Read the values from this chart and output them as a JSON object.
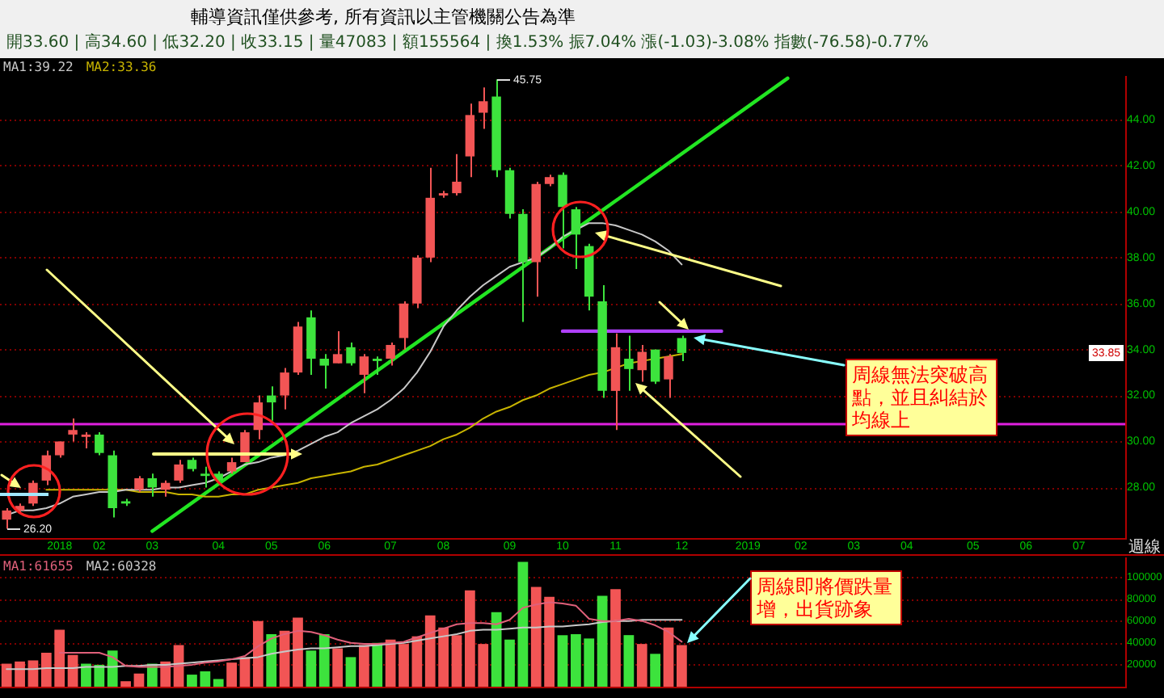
{
  "chart_data": [
    {
      "type": "candlestick",
      "xlabel": "週線",
      "legend": "top left",
      "grid": "y",
      "annotations": [
        "輔導資訊僅供參考, 所有資訊以主管機關公告為準",
        "開33.60 | 高34.60 | 低32.20 | 收33.15 | 量47083 | 額155564 | 換1.53% 振7.04% 漲(-1.03)-3.08% 指數(-76.58)-0.77%",
        "45.75",
        "26.20",
        {
          "text": "33.85",
          "y": 33.85
        },
        "周線無法突破高點，並且糾結於均線上"
      ],
      "categories": [
        null,
        null,
        null,
        null,
        "2018",
        null,
        null,
        "02",
        null,
        null,
        null,
        "03",
        null,
        null,
        null,
        null,
        "04",
        null,
        null,
        null,
        "05",
        null,
        null,
        null,
        "06",
        null,
        null,
        null,
        null,
        "07",
        null,
        null,
        null,
        "08",
        null,
        null,
        null,
        null,
        "09",
        null,
        null,
        null,
        "10",
        null,
        null,
        null,
        "11",
        null,
        null,
        null,
        null,
        "12",
        null,
        null,
        null,
        null,
        "2019",
        null,
        null,
        null,
        "02",
        null,
        null,
        null,
        "03",
        null,
        null,
        null,
        "04",
        null,
        null,
        null,
        null,
        "05",
        null,
        null,
        null,
        "06",
        null,
        null,
        null,
        "07",
        null,
        null,
        null
      ],
      "ohlc": [
        [
          26.6,
          27.1,
          26.2,
          27.0
        ],
        [
          27.0,
          27.3,
          26.9,
          27.2
        ],
        [
          27.3,
          28.3,
          27.2,
          28.2
        ],
        [
          28.3,
          29.6,
          28.1,
          29.4
        ],
        [
          29.4,
          30.0,
          29.3,
          30.0
        ],
        [
          30.3,
          31.0,
          30.0,
          30.5
        ],
        [
          30.2,
          30.4,
          29.7,
          30.3
        ],
        [
          30.3,
          30.4,
          29.4,
          29.5
        ],
        [
          29.4,
          29.6,
          26.7,
          27.1
        ],
        [
          27.4,
          27.5,
          27.2,
          27.3
        ],
        [
          27.9,
          28.5,
          27.8,
          28.4
        ],
        [
          28.4,
          28.6,
          27.6,
          28.0
        ],
        [
          27.9,
          28.3,
          27.6,
          28.2
        ],
        [
          28.3,
          29.2,
          28.2,
          29.0
        ],
        [
          29.2,
          29.3,
          28.7,
          28.8
        ],
        [
          28.6,
          28.9,
          28.0,
          28.5
        ],
        [
          28.6,
          28.7,
          28.1,
          28.3
        ],
        [
          28.7,
          29.3,
          28.6,
          29.1
        ],
        [
          29.1,
          30.5,
          29.1,
          30.4
        ],
        [
          30.5,
          32.0,
          30.1,
          31.7
        ],
        [
          32.0,
          32.4,
          30.9,
          31.7
        ],
        [
          32.0,
          33.2,
          31.4,
          33.0
        ],
        [
          33.0,
          35.2,
          32.9,
          35.0
        ],
        [
          35.4,
          35.7,
          32.9,
          33.6
        ],
        [
          33.6,
          33.8,
          32.3,
          33.3
        ],
        [
          33.4,
          34.8,
          33.4,
          33.8
        ],
        [
          34.1,
          34.3,
          33.3,
          33.4
        ],
        [
          32.9,
          33.8,
          32.1,
          33.7
        ],
        [
          33.6,
          33.7,
          32.9,
          33.5
        ],
        [
          33.6,
          34.3,
          33.3,
          34.2
        ],
        [
          34.5,
          36.1,
          34.0,
          36.0
        ],
        [
          36.0,
          38.1,
          35.8,
          38.0
        ],
        [
          38.0,
          41.9,
          37.8,
          40.6
        ],
        [
          40.7,
          40.9,
          40.6,
          40.8
        ],
        [
          40.8,
          42.5,
          40.7,
          41.3
        ],
        [
          42.4,
          44.7,
          41.5,
          44.2
        ],
        [
          44.3,
          45.4,
          43.6,
          44.8
        ],
        [
          45.0,
          45.75,
          41.5,
          41.8
        ],
        [
          41.8,
          41.9,
          39.7,
          39.9
        ],
        [
          39.9,
          40.1,
          35.2,
          37.8
        ],
        [
          37.8,
          41.3,
          36.3,
          41.2
        ],
        [
          41.2,
          41.6,
          41.1,
          41.5
        ],
        [
          41.6,
          41.7,
          38.4,
          40.2
        ],
        [
          40.1,
          40.2,
          37.5,
          39.0
        ],
        [
          38.5,
          38.6,
          35.7,
          36.3
        ],
        [
          36.1,
          36.8,
          31.9,
          32.2
        ],
        [
          32.2,
          34.7,
          30.5,
          34.1
        ],
        [
          33.6,
          34.6,
          32.2,
          33.15
        ],
        [
          33.1,
          34.2,
          32.6,
          33.9
        ],
        [
          34.0,
          34.0,
          32.5,
          32.6
        ],
        [
          32.7,
          33.8,
          31.9,
          33.7
        ],
        [
          34.5,
          34.6,
          33.5,
          33.85
        ],
        null,
        null,
        null,
        null,
        null,
        null,
        null,
        null,
        null,
        null,
        null,
        null,
        null,
        null,
        null,
        null,
        null,
        null,
        null,
        null,
        null,
        null,
        null,
        null,
        null,
        null,
        null,
        null,
        null,
        null,
        null,
        null,
        null
      ],
      "colors": [
        "#f25555",
        "#f25555",
        "#f25555",
        "#f25555",
        "#f25555",
        "#f25555",
        "#f25555",
        "#3de33d",
        "#3de33d",
        "#3de33d",
        "#f25555",
        "#3de33d",
        "#f25555",
        "#f25555",
        "#3de33d",
        "#3de33d",
        "#3de33d",
        "#f25555",
        "#f25555",
        "#f25555",
        "#3de33d",
        "#f25555",
        "#f25555",
        "#3de33d",
        "#3de33d",
        "#f25555",
        "#3de33d",
        "#f25555",
        "#3de33d",
        "#f25555",
        "#f25555",
        "#f25555",
        "#f25555",
        "#f25555",
        "#f25555",
        "#f25555",
        "#f25555",
        "#3de33d",
        "#3de33d",
        "#3de33d",
        "#f25555",
        "#f25555",
        "#3de33d",
        "#3de33d",
        "#3de33d",
        "#3de33d",
        "#f25555",
        "#3de33d",
        "#f25555",
        "#3de33d",
        "#f25555",
        "#3de33d",
        null,
        null,
        null,
        null,
        null,
        null,
        null,
        null,
        null,
        null,
        null,
        null,
        null,
        null,
        null,
        null,
        null,
        null,
        null,
        null,
        null,
        null,
        null,
        null,
        null,
        null,
        null,
        null,
        null,
        null,
        null,
        null,
        null
      ],
      "series": [
        {
          "name": "MA1:39.22",
          "type": "line",
          "color": "#c8c8c8",
          "values": [
            26.8,
            27.0,
            27.0,
            27.1,
            27.3,
            27.6,
            27.7,
            27.8,
            27.8,
            27.9,
            27.9,
            27.9,
            28.0,
            28.0,
            28.1,
            28.2,
            28.4,
            28.7,
            29.0,
            29.1,
            29.3,
            29.4,
            29.6,
            29.9,
            30.2,
            30.4,
            30.8,
            31.1,
            31.4,
            31.8,
            32.3,
            33.0,
            33.9,
            35.0,
            35.7,
            36.3,
            36.8,
            37.2,
            37.6,
            37.8,
            38.0,
            38.4,
            38.9,
            39.2,
            39.5,
            39.5,
            39.4,
            39.2,
            39.0,
            38.7,
            38.3,
            37.7,
            null,
            null,
            null,
            null,
            null,
            null,
            null,
            null,
            null,
            null,
            null,
            null,
            null,
            null,
            null,
            null,
            null,
            null,
            null,
            null,
            null,
            null,
            null,
            null,
            null,
            null,
            null,
            null,
            null,
            null,
            null,
            null,
            null
          ]
        },
        {
          "name": "MA2:33.36",
          "type": "line",
          "color": "#c8b400",
          "values": [
            null,
            null,
            null,
            27.9,
            27.9,
            27.9,
            27.9,
            27.9,
            27.9,
            27.9,
            27.8,
            27.8,
            27.8,
            27.7,
            27.7,
            27.6,
            27.6,
            27.7,
            27.7,
            27.9,
            28.0,
            28.1,
            28.2,
            28.4,
            28.5,
            28.6,
            28.7,
            28.9,
            29.0,
            29.2,
            29.4,
            29.6,
            29.8,
            30.1,
            30.3,
            30.6,
            31.0,
            31.3,
            31.5,
            31.8,
            32.0,
            32.3,
            32.5,
            32.7,
            32.9,
            33.0,
            33.2,
            33.4,
            33.5,
            33.6,
            33.7,
            33.8,
            null,
            null,
            null,
            null,
            null,
            null,
            null,
            null,
            null,
            null,
            null,
            null,
            null,
            null,
            null,
            null,
            null,
            null,
            null,
            null,
            null,
            null,
            null,
            null,
            null,
            null,
            null,
            null,
            null,
            null,
            null,
            null,
            null
          ]
        },
        {
          "type": "line",
          "color": "#22e622",
          "values": [
            null,
            null,
            null,
            null,
            null,
            null,
            null,
            null,
            null,
            null,
            null,
            26.1,
            null,
            null,
            null,
            null,
            null,
            null,
            null,
            null,
            null,
            null,
            null,
            null,
            null,
            null,
            null,
            null,
            null,
            null,
            null,
            null,
            null,
            null,
            null,
            null,
            null,
            null,
            null,
            null,
            null,
            null,
            null,
            null,
            null,
            null,
            null,
            null,
            null,
            null,
            null,
            null,
            null,
            null,
            null,
            null,
            null,
            null,
            null,
            45.8,
            null,
            null,
            null,
            null,
            null,
            null,
            null,
            null,
            null,
            null,
            null,
            null,
            null,
            null,
            null,
            null,
            null,
            null,
            null,
            null,
            null,
            null,
            null,
            null,
            null
          ]
        },
        {
          "type": "line",
          "color": "#b040ff",
          "values": [
            null,
            null,
            null,
            null,
            null,
            null,
            null,
            null,
            null,
            null,
            null,
            null,
            null,
            null,
            null,
            null,
            null,
            null,
            null,
            null,
            null,
            null,
            null,
            null,
            null,
            null,
            null,
            null,
            null,
            null,
            null,
            null,
            null,
            null,
            null,
            null,
            null,
            null,
            null,
            null,
            null,
            null,
            34.8,
            null,
            null,
            null,
            null,
            null,
            null,
            null,
            null,
            null,
            null,
            null,
            34.8,
            null,
            null,
            null,
            null,
            null,
            null,
            null,
            null,
            null,
            null,
            null,
            null,
            null,
            null,
            null,
            null,
            null,
            null,
            null,
            null,
            null,
            null,
            null,
            null,
            null,
            null,
            null,
            null,
            null,
            null
          ]
        }
      ],
      "ref_lines": [
        {
          "axis": "y",
          "value": 30.8,
          "color": "#e020e0"
        }
      ],
      "ylim": [
        25.8,
        45.9
      ],
      "yticks": [
        {
          "value": 28,
          "label": "28.00"
        },
        {
          "value": 30,
          "label": "30.00"
        },
        {
          "value": 32,
          "label": "32.00"
        },
        {
          "value": 34,
          "label": "34.00"
        },
        {
          "value": 36,
          "label": "36.00"
        },
        {
          "value": 38,
          "label": "38.00"
        },
        {
          "value": 40,
          "label": "40.00"
        },
        {
          "value": 42,
          "label": "42.00"
        },
        {
          "value": 44,
          "label": "44.00"
        }
      ]
    },
    {
      "type": "bar",
      "legend": "top left",
      "grid": "y",
      "tick_labels": "y",
      "annotations": [
        "周線即將價跌量增，出貨跡象"
      ],
      "categories": [
        null,
        null,
        null,
        null,
        "2018",
        null,
        null,
        "02",
        null,
        null,
        null,
        "03",
        null,
        null,
        null,
        null,
        "04",
        null,
        null,
        null,
        "05",
        null,
        null,
        null,
        "06",
        null,
        null,
        null,
        null,
        "07",
        null,
        null,
        null,
        "08",
        null,
        null,
        null,
        null,
        "09",
        null,
        null,
        null,
        "10",
        null,
        null,
        null,
        "11",
        null,
        null,
        null,
        null,
        "12",
        null,
        null,
        null,
        null,
        "2019",
        null,
        null,
        null,
        "02",
        null,
        null,
        null,
        "03",
        null,
        null,
        null,
        "04",
        null,
        null,
        null,
        null,
        "05",
        null,
        null,
        null,
        "06",
        null,
        null,
        null,
        "07",
        null,
        null,
        null
      ],
      "series": [
        {
          "type": "bar",
          "values": [
            21000,
            23000,
            24000,
            31000,
            52000,
            29000,
            21000,
            20000,
            33000,
            5000,
            12000,
            21000,
            23000,
            38000,
            11000,
            14000,
            7000,
            22000,
            27000,
            60000,
            48000,
            51000,
            63000,
            33000,
            48000,
            35000,
            27000,
            38000,
            40000,
            43000,
            39000,
            46000,
            65000,
            54000,
            47000,
            88000,
            39000,
            68000,
            43000,
            114000,
            91000,
            82000,
            47000,
            48000,
            44000,
            83000,
            89000,
            47083,
            39000,
            30000,
            54000,
            38000,
            null,
            null,
            null,
            null,
            null,
            null,
            null,
            null,
            null,
            null,
            null,
            null,
            null,
            null,
            null,
            null,
            null,
            null,
            null,
            null,
            null,
            null,
            null,
            null,
            null,
            null,
            null,
            null,
            null,
            null,
            null,
            null,
            null
          ],
          "colors": [
            "#f25555",
            "#f25555",
            "#f25555",
            "#f25555",
            "#f25555",
            "#f25555",
            "#3de33d",
            "#3de33d",
            "#3de33d",
            "#f25555",
            "#f25555",
            "#3de33d",
            "#f25555",
            "#f25555",
            "#3de33d",
            "#3de33d",
            "#3de33d",
            "#f25555",
            "#f25555",
            "#f25555",
            "#3de33d",
            "#f25555",
            "#f25555",
            "#3de33d",
            "#3de33d",
            "#f25555",
            "#3de33d",
            "#f25555",
            "#3de33d",
            "#f25555",
            "#f25555",
            "#f25555",
            "#f25555",
            "#f25555",
            "#f25555",
            "#f25555",
            "#f25555",
            "#3de33d",
            "#3de33d",
            "#3de33d",
            "#f25555",
            "#f25555",
            "#3de33d",
            "#3de33d",
            "#3de33d",
            "#3de33d",
            "#f25555",
            "#3de33d",
            "#f25555",
            "#3de33d",
            "#f25555",
            "#f25555",
            null,
            null,
            null,
            null,
            null,
            null,
            null,
            null,
            null,
            null,
            null,
            null,
            null,
            null,
            null,
            null,
            null,
            null,
            null,
            null,
            null,
            null,
            null,
            null,
            null,
            null,
            null,
            null,
            null,
            null,
            null,
            null,
            null
          ]
        },
        {
          "name": "MA1:61655",
          "type": "line",
          "color": "#e0607a",
          "values": [
            null,
            null,
            null,
            null,
            31000,
            31000,
            31000,
            31000,
            27000,
            19000,
            18000,
            18000,
            18000,
            19000,
            20000,
            22000,
            23000,
            25000,
            28000,
            37000,
            44000,
            48000,
            51000,
            50000,
            47000,
            43000,
            40000,
            39000,
            39000,
            40000,
            41000,
            45000,
            49000,
            53000,
            57000,
            58000,
            58000,
            57000,
            61000,
            72000,
            75000,
            77000,
            76000,
            74000,
            62000,
            60000,
            60000,
            62000,
            60000,
            56000,
            50000,
            41000,
            null,
            null,
            null,
            null,
            null,
            null,
            null,
            null,
            null,
            null,
            null,
            null,
            null,
            null,
            null,
            null,
            null,
            null,
            null,
            null,
            null,
            null,
            null,
            null,
            null,
            null,
            null,
            null,
            null,
            null,
            null,
            null,
            null
          ]
        },
        {
          "name": "MA2:60328",
          "type": "line",
          "color": "#c8c8c8",
          "values": [
            16000,
            16000,
            16000,
            17000,
            17000,
            17000,
            18000,
            18000,
            18000,
            19000,
            19000,
            20000,
            20000,
            21000,
            22000,
            23000,
            24000,
            25000,
            26000,
            27000,
            30000,
            32000,
            34000,
            35000,
            35000,
            36000,
            37000,
            37000,
            38000,
            39000,
            40000,
            42000,
            44000,
            46000,
            48000,
            51000,
            52000,
            52000,
            53000,
            54000,
            54000,
            55000,
            55000,
            56000,
            57000,
            59000,
            60000,
            60000,
            61000,
            61000,
            61000,
            61000,
            null,
            null,
            null,
            null,
            null,
            null,
            null,
            null,
            null,
            null,
            null,
            null,
            null,
            null,
            null,
            null,
            null,
            null,
            null,
            null,
            null,
            null,
            null,
            null,
            null,
            null,
            null,
            null,
            null,
            null,
            null,
            null,
            null
          ]
        }
      ],
      "ylim": [
        0,
        118000
      ],
      "yticks": [
        20000,
        40000,
        60000,
        80000,
        100000
      ]
    }
  ]
}
